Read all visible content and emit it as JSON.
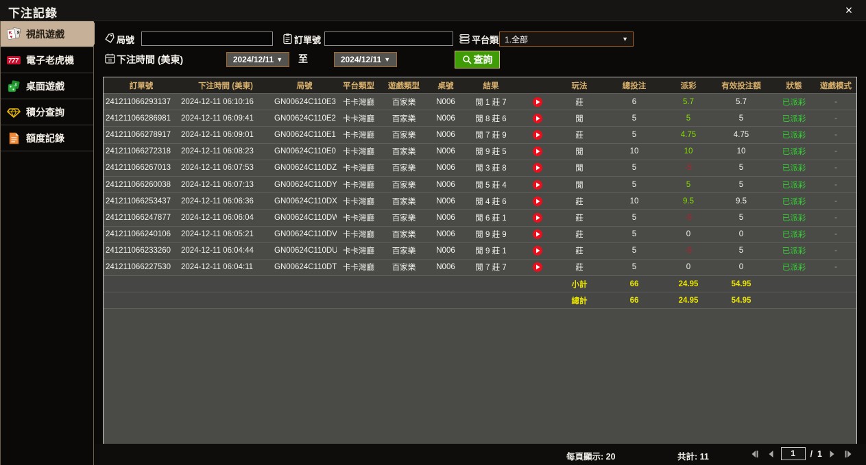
{
  "window": {
    "title": "下注記錄",
    "close_glyph": "×"
  },
  "sidebar": {
    "items": [
      {
        "label": "視訊遊戲",
        "icon": "cards-icon",
        "active": true
      },
      {
        "label": "電子老虎機",
        "icon": "slot-777-icon",
        "active": false
      },
      {
        "label": "桌面遊戲",
        "icon": "table-games-icon",
        "active": false
      },
      {
        "label": "積分查詢",
        "icon": "diamond-icon",
        "active": false
      },
      {
        "label": "額度記錄",
        "icon": "document-icon",
        "active": false
      }
    ]
  },
  "filters": {
    "round_label": "局號",
    "round_value": "",
    "order_label": "訂單號",
    "order_value": "",
    "platform_label": "平台類型",
    "platform_value": "1.全部",
    "time_label": "下注時間 (美東)",
    "date_from": "2024/12/11",
    "to_label": "至",
    "date_to": "2024/12/11",
    "search_label": "查詢",
    "caret": "▼"
  },
  "table": {
    "headers": [
      "訂單號",
      "下注時間 (美東)",
      "局號",
      "平台類型",
      "遊戲類型",
      "桌號",
      "結果",
      "",
      "玩法",
      "總投注",
      "派彩",
      "有效投注額",
      "狀態",
      "遊戲模式"
    ],
    "rows": [
      {
        "order": "241211066293137",
        "time": "2024-12-11 06:10:16",
        "round": "GN00624C110E3",
        "platform": "卡卡灣廳",
        "game": "百家樂",
        "table_no": "N006",
        "result": "閒 1 莊 7",
        "play": "莊",
        "total": "6",
        "payout": "5.7",
        "valid": "5.7",
        "status": "已派彩",
        "mode": "-"
      },
      {
        "order": "241211066286981",
        "time": "2024-12-11 06:09:41",
        "round": "GN00624C110E2",
        "platform": "卡卡灣廳",
        "game": "百家樂",
        "table_no": "N006",
        "result": "閒 8 莊 6",
        "play": "閒",
        "total": "5",
        "payout": "5",
        "valid": "5",
        "status": "已派彩",
        "mode": "-"
      },
      {
        "order": "241211066278917",
        "time": "2024-12-11 06:09:01",
        "round": "GN00624C110E1",
        "platform": "卡卡灣廳",
        "game": "百家樂",
        "table_no": "N006",
        "result": "閒 7 莊 9",
        "play": "莊",
        "total": "5",
        "payout": "4.75",
        "valid": "4.75",
        "status": "已派彩",
        "mode": "-"
      },
      {
        "order": "241211066272318",
        "time": "2024-12-11 06:08:23",
        "round": "GN00624C110E0",
        "platform": "卡卡灣廳",
        "game": "百家樂",
        "table_no": "N006",
        "result": "閒 9 莊 5",
        "play": "閒",
        "total": "10",
        "payout": "10",
        "valid": "10",
        "status": "已派彩",
        "mode": "-"
      },
      {
        "order": "241211066267013",
        "time": "2024-12-11 06:07:53",
        "round": "GN00624C110DZ",
        "platform": "卡卡灣廳",
        "game": "百家樂",
        "table_no": "N006",
        "result": "閒 3 莊 8",
        "play": "閒",
        "total": "5",
        "payout": "-5",
        "valid": "5",
        "status": "已派彩",
        "mode": "-"
      },
      {
        "order": "241211066260038",
        "time": "2024-12-11 06:07:13",
        "round": "GN00624C110DY",
        "platform": "卡卡灣廳",
        "game": "百家樂",
        "table_no": "N006",
        "result": "閒 5 莊 4",
        "play": "閒",
        "total": "5",
        "payout": "5",
        "valid": "5",
        "status": "已派彩",
        "mode": "-"
      },
      {
        "order": "241211066253437",
        "time": "2024-12-11 06:06:36",
        "round": "GN00624C110DX",
        "platform": "卡卡灣廳",
        "game": "百家樂",
        "table_no": "N006",
        "result": "閒 4 莊 6",
        "play": "莊",
        "total": "10",
        "payout": "9.5",
        "valid": "9.5",
        "status": "已派彩",
        "mode": "-"
      },
      {
        "order": "241211066247877",
        "time": "2024-12-11 06:06:04",
        "round": "GN00624C110DW",
        "platform": "卡卡灣廳",
        "game": "百家樂",
        "table_no": "N006",
        "result": "閒 6 莊 1",
        "play": "莊",
        "total": "5",
        "payout": "-5",
        "valid": "5",
        "status": "已派彩",
        "mode": "-"
      },
      {
        "order": "241211066240106",
        "time": "2024-12-11 06:05:21",
        "round": "GN00624C110DV",
        "platform": "卡卡灣廳",
        "game": "百家樂",
        "table_no": "N006",
        "result": "閒 9 莊 9",
        "play": "莊",
        "total": "5",
        "payout": "0",
        "valid": "0",
        "status": "已派彩",
        "mode": "-"
      },
      {
        "order": "241211066233260",
        "time": "2024-12-11 06:04:44",
        "round": "GN00624C110DU",
        "platform": "卡卡灣廳",
        "game": "百家樂",
        "table_no": "N006",
        "result": "閒 9 莊 1",
        "play": "莊",
        "total": "5",
        "payout": "-5",
        "valid": "5",
        "status": "已派彩",
        "mode": "-"
      },
      {
        "order": "241211066227530",
        "time": "2024-12-11 06:04:11",
        "round": "GN00624C110DT",
        "platform": "卡卡灣廳",
        "game": "百家樂",
        "table_no": "N006",
        "result": "閒 7 莊 7",
        "play": "莊",
        "total": "5",
        "payout": "0",
        "valid": "0",
        "status": "已派彩",
        "mode": "-"
      }
    ],
    "subtotal": {
      "label": "小計",
      "total": "66",
      "payout": "24.95",
      "valid": "54.95"
    },
    "grand_total": {
      "label": "總計",
      "total": "66",
      "payout": "24.95",
      "valid": "54.95"
    }
  },
  "pagination": {
    "per_page_label": "每頁顯示: 20",
    "total_label": "共計: 11",
    "current_page": "1",
    "separator": "/",
    "total_pages": "1"
  },
  "colors": {
    "accent_tan": "#c7b098",
    "header_gold": "#d8b06c",
    "win_green": "#86df00",
    "lose_red": "#b3232a",
    "status_green": "#33d133",
    "total_yellow": "#e9e400",
    "search_green": "#3f9c06",
    "dropdown_border": "#a5692c",
    "play_red": "#e8101c"
  }
}
